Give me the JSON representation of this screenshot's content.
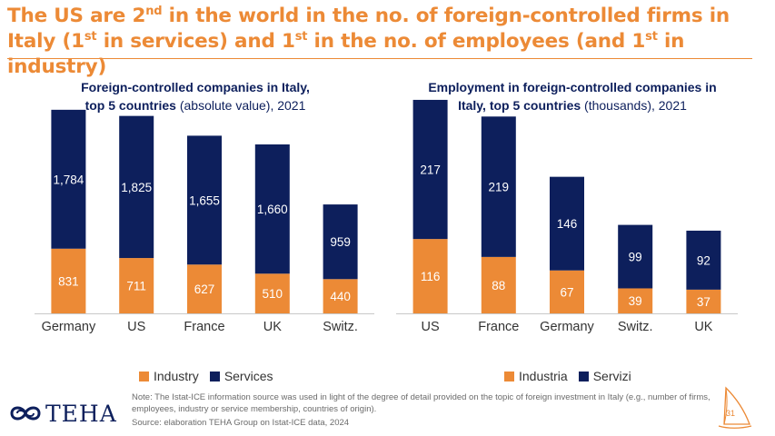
{
  "title": {
    "part1": "The US are 2",
    "sup1": "nd",
    "part2": " in the world in the no. of foreign-controlled firms in Italy (1",
    "sup2": "st",
    "part3": " in services) and 1",
    "sup3": "st",
    "part4": " in the no. of employees (and 1",
    "sup4": "st",
    "part5": " in industry)"
  },
  "left_subtitle": {
    "line1": "Foreign-controlled companies in Italy,",
    "bold2": "top 5 countries",
    "rest2": " (absolute value), 2021"
  },
  "right_subtitle": {
    "line1": "Employment in foreign-controlled companies in",
    "bold2": "Italy, top 5 countries",
    "rest2": " (thousands), 2021"
  },
  "chart_data": [
    {
      "type": "bar",
      "stacked": true,
      "title": "Foreign-controlled companies in Italy, top 5 countries (absolute value), 2021",
      "categories": [
        "Germany",
        "US",
        "France",
        "UK",
        "Switz."
      ],
      "series": [
        {
          "name": "Industry",
          "values": [
            831,
            711,
            627,
            510,
            440
          ],
          "labels": [
            "831",
            "711",
            "627",
            "510",
            "440"
          ],
          "color": "#ec8a36"
        },
        {
          "name": "Services",
          "values": [
            1784,
            1825,
            1655,
            1660,
            959
          ],
          "labels": [
            "1,784",
            "1,825",
            "1,655",
            "1,660",
            "959"
          ],
          "color": "#0d1f5c"
        }
      ],
      "ylim": [
        0,
        2800
      ],
      "legend": "bottom",
      "grid": false
    },
    {
      "type": "bar",
      "stacked": true,
      "title": "Employment in foreign-controlled companies in Italy, top 5 countries (thousands), 2021",
      "categories": [
        "US",
        "France",
        "Germany",
        "Switz.",
        "UK"
      ],
      "series": [
        {
          "name": "Industria",
          "values": [
            116,
            88,
            67,
            39,
            37
          ],
          "labels": [
            "116",
            "88",
            "67",
            "39",
            "37"
          ],
          "color": "#ec8a36"
        },
        {
          "name": "Servizi",
          "values": [
            217,
            219,
            146,
            99,
            92
          ],
          "labels": [
            "217",
            "219",
            "146",
            "99",
            "92"
          ],
          "color": "#0d1f5c"
        }
      ],
      "ylim": [
        0,
        340
      ],
      "legend": "bottom",
      "grid": false
    }
  ],
  "note": "Note: The Istat-ICE information source was used in light of the degree of detail provided on the topic of foreign investment in Italy (e.g., number of firms, employees, industry or service membership, countries of origin).",
  "source": "Source: elaboration TEHA Group on Istat-ICE data, 2024",
  "logo_text": "TEHA",
  "page_number": "31"
}
